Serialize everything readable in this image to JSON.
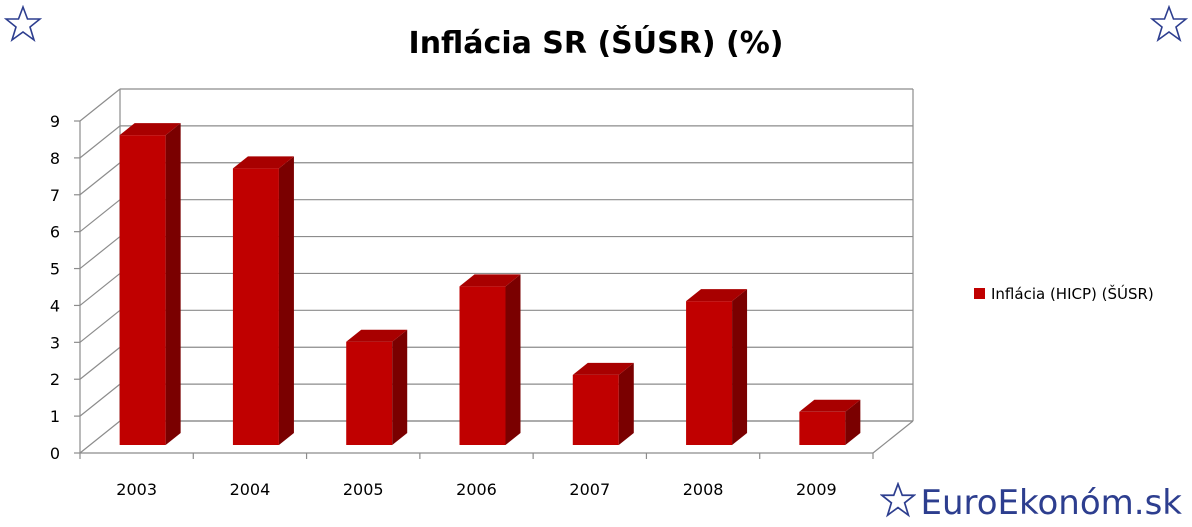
{
  "chart_data": {
    "type": "bar",
    "title": "Inflácia SR (ŠÚSR) (%)",
    "categories": [
      "2003",
      "2004",
      "2005",
      "2006",
      "2007",
      "2008",
      "2009"
    ],
    "series": [
      {
        "name": "Inflácia (HICP) (ŠÚSR)",
        "values": [
          8.4,
          7.5,
          2.8,
          4.3,
          1.9,
          3.9,
          0.9
        ]
      }
    ],
    "ylim": [
      0,
      9
    ],
    "yticks": [
      "0",
      "1",
      "2",
      "3",
      "4",
      "5",
      "6",
      "7",
      "8",
      "9"
    ],
    "grid": true,
    "legend_position": "right",
    "bar_color": "#c00000",
    "bar_side_color": "#7a0000",
    "bar_top_color": "#a80000"
  },
  "branding": {
    "text": "EuroEkonóm.sk",
    "color": "#2d3e8f"
  },
  "icons": {
    "corner_left": "star-outline-icon",
    "corner_right": "star-outline-icon",
    "brand": "star-outline-icon"
  }
}
